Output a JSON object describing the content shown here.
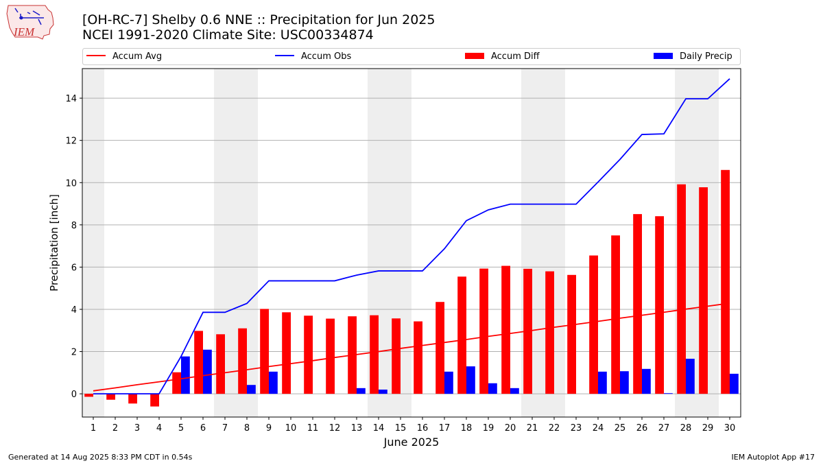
{
  "header": {
    "logo_text": "IEM",
    "title_line1": "[OH-RC-7] Shelby 0.6 NNE :: Precipitation for Jun 2025",
    "title_line2": "NCEI 1991-2020 Climate Site: USC00334874"
  },
  "footer": {
    "generated": "Generated at 14 Aug 2025 8:33 PM CDT in 0.54s",
    "app": "IEM Autoplot App #17"
  },
  "colors": {
    "accum_avg": "#ff0000",
    "accum_obs": "#0000ff",
    "accum_diff": "#ff0000",
    "daily_precip": "#0000ff",
    "weekend_shade": "#eeeeee",
    "grid": "#b0b0b0"
  },
  "chart_data": {
    "type": "bar",
    "title": "[OH-RC-7] Shelby 0.6 NNE :: Precipitation for Jun 2025",
    "subtitle": "NCEI 1991-2020 Climate Site: USC00334874",
    "xlabel": "June 2025",
    "ylabel": "Precipitation [inch]",
    "ylim": [
      -1.1,
      15.4
    ],
    "yticks": [
      0,
      2,
      4,
      6,
      8,
      10,
      12,
      14
    ],
    "grid": true,
    "legend_placement": "top",
    "shaded_weekend_days": [
      [
        1
      ],
      [
        7,
        8
      ],
      [
        14,
        15
      ],
      [
        21,
        22
      ],
      [
        28,
        29
      ]
    ],
    "x": [
      1,
      2,
      3,
      4,
      5,
      6,
      7,
      8,
      9,
      10,
      11,
      12,
      13,
      14,
      15,
      16,
      17,
      18,
      19,
      20,
      21,
      22,
      23,
      24,
      25,
      26,
      27,
      28,
      29,
      30
    ],
    "series": [
      {
        "name": "Accum Avg",
        "kind": "line",
        "color": "#ff0000",
        "values": [
          0.14,
          0.28,
          0.43,
          0.57,
          0.71,
          0.86,
          1.0,
          1.14,
          1.29,
          1.43,
          1.57,
          1.72,
          1.86,
          2.0,
          2.15,
          2.29,
          2.43,
          2.57,
          2.72,
          2.86,
          3.0,
          3.15,
          3.29,
          3.43,
          3.58,
          3.72,
          3.86,
          4.01,
          4.15,
          4.29
        ]
      },
      {
        "name": "Accum Obs",
        "kind": "line",
        "color": "#0000ff",
        "values": [
          0,
          0,
          0,
          0,
          1.77,
          3.86,
          3.86,
          4.28,
          5.35,
          5.35,
          5.35,
          5.35,
          5.62,
          5.82,
          5.82,
          5.82,
          6.87,
          8.2,
          8.71,
          8.98,
          8.98,
          8.98,
          8.98,
          10.03,
          11.1,
          12.28,
          12.31,
          13.97,
          13.97,
          14.92
        ]
      },
      {
        "name": "Accum Diff",
        "kind": "bar",
        "color": "#ff0000",
        "values": [
          -0.14,
          -0.28,
          -0.46,
          -0.6,
          1.02,
          2.98,
          2.82,
          3.1,
          4.02,
          3.86,
          3.7,
          3.56,
          3.67,
          3.72,
          3.57,
          3.43,
          4.35,
          5.55,
          5.93,
          6.06,
          5.92,
          5.8,
          5.63,
          6.55,
          7.5,
          8.51,
          8.41,
          9.92,
          9.78,
          10.6
        ]
      },
      {
        "name": "Daily Precip",
        "kind": "bar",
        "color": "#0000ff",
        "values": [
          0,
          0,
          0,
          0,
          1.77,
          2.09,
          0,
          0.42,
          1.05,
          0,
          0,
          0,
          0.27,
          0.2,
          0,
          0,
          1.05,
          1.3,
          0.5,
          0.27,
          0,
          0,
          0,
          1.05,
          1.07,
          1.18,
          0.03,
          1.66,
          0,
          0.95
        ]
      }
    ]
  }
}
